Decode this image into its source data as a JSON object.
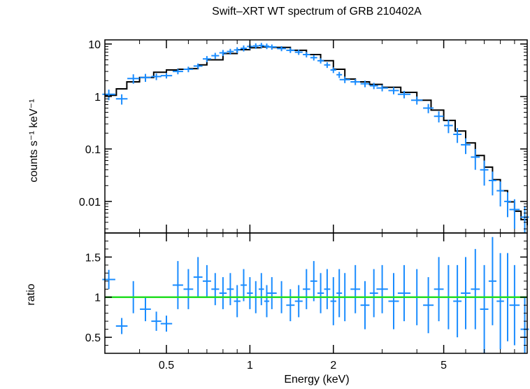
{
  "chart_data": [
    {
      "type": "scatter",
      "panel": "spectrum",
      "title": "Swift–XRT WT spectrum of GRB 210402A",
      "xlabel": "Energy (keV)",
      "ylabel": "counts s⁻¹ keV⁻¹",
      "xscale": "log",
      "yscale": "log",
      "xlim": [
        0.3,
        10
      ],
      "ylim": [
        0.0025,
        12
      ],
      "yticks": [
        "10",
        "1",
        "0.1",
        "0.01"
      ],
      "colors": {
        "data": "#1a8cff",
        "model": "#000000"
      },
      "model": {
        "x": [
          0.3,
          0.33,
          0.36,
          0.4,
          0.45,
          0.5,
          0.55,
          0.6,
          0.65,
          0.7,
          0.8,
          0.9,
          1.0,
          1.1,
          1.2,
          1.4,
          1.6,
          1.8,
          2.0,
          2.2,
          2.4,
          2.7,
          3.0,
          3.5,
          4.0,
          4.5,
          5.0,
          5.5,
          6.0,
          6.5,
          7.0,
          7.5,
          8.0,
          8.5,
          9.0,
          9.5,
          10.0
        ],
        "y": [
          1.05,
          1.4,
          1.9,
          2.3,
          2.9,
          3.2,
          3.3,
          3.4,
          4.0,
          5.0,
          6.6,
          7.8,
          8.5,
          8.8,
          8.6,
          7.6,
          6.3,
          4.8,
          3.3,
          2.15,
          1.9,
          1.7,
          1.5,
          1.2,
          0.85,
          0.55,
          0.35,
          0.22,
          0.13,
          0.075,
          0.045,
          0.026,
          0.016,
          0.0098,
          0.0065,
          0.0045,
          0.0035
        ]
      },
      "data": {
        "x": [
          0.31,
          0.345,
          0.38,
          0.42,
          0.46,
          0.5,
          0.55,
          0.6,
          0.65,
          0.7,
          0.75,
          0.8,
          0.85,
          0.9,
          0.95,
          1.0,
          1.05,
          1.1,
          1.15,
          1.2,
          1.3,
          1.4,
          1.5,
          1.6,
          1.7,
          1.8,
          1.9,
          2.0,
          2.1,
          2.2,
          2.4,
          2.6,
          2.8,
          3.0,
          3.3,
          3.6,
          4.0,
          4.4,
          4.8,
          5.2,
          5.6,
          6.0,
          6.5,
          7.0,
          7.5,
          8.0,
          8.5,
          9.0,
          9.8
        ],
        "y": [
          1.1,
          0.9,
          2.2,
          2.3,
          2.4,
          2.5,
          3.0,
          3.3,
          3.8,
          5.2,
          6.0,
          6.8,
          7.2,
          7.7,
          8.3,
          9.0,
          9.2,
          9.4,
          9.1,
          8.8,
          8.2,
          7.6,
          7.0,
          6.3,
          5.5,
          4.8,
          4.0,
          3.2,
          2.6,
          2.1,
          1.9,
          1.75,
          1.6,
          1.45,
          1.3,
          1.1,
          0.85,
          0.6,
          0.42,
          0.28,
          0.19,
          0.12,
          0.07,
          0.04,
          0.025,
          0.016,
          0.01,
          0.007,
          0.005
        ],
        "yerr": [
          0.25,
          0.2,
          0.45,
          0.4,
          0.35,
          0.3,
          0.35,
          0.4,
          0.45,
          0.7,
          0.8,
          0.9,
          0.9,
          1.0,
          1.1,
          1.1,
          1.1,
          1.1,
          1.1,
          1.0,
          0.9,
          0.85,
          0.8,
          0.75,
          0.65,
          0.55,
          0.5,
          0.4,
          0.35,
          0.3,
          0.25,
          0.25,
          0.22,
          0.2,
          0.2,
          0.18,
          0.15,
          0.12,
          0.1,
          0.08,
          0.06,
          0.04,
          0.03,
          0.02,
          0.012,
          0.008,
          0.005,
          0.004,
          0.003
        ]
      }
    },
    {
      "type": "scatter",
      "panel": "ratio",
      "xlabel": "Energy (keV)",
      "ylabel": "ratio",
      "xscale": "log",
      "xlim": [
        0.3,
        10
      ],
      "ylim": [
        0.3,
        1.8
      ],
      "yticks": [
        "1.5",
        "1",
        "0.5"
      ],
      "xticks": [
        "0.5",
        "1",
        "2",
        "5"
      ],
      "reference_line": 1,
      "colors": {
        "data": "#1a8cff",
        "reference": "#22dd22"
      },
      "data": {
        "x": [
          0.31,
          0.345,
          0.38,
          0.42,
          0.46,
          0.5,
          0.55,
          0.6,
          0.65,
          0.7,
          0.75,
          0.8,
          0.85,
          0.9,
          0.95,
          1.0,
          1.05,
          1.1,
          1.15,
          1.2,
          1.3,
          1.4,
          1.5,
          1.6,
          1.7,
          1.8,
          1.9,
          2.0,
          2.1,
          2.2,
          2.4,
          2.6,
          2.8,
          3.0,
          3.3,
          3.6,
          4.0,
          4.4,
          4.8,
          5.2,
          5.6,
          6.0,
          6.5,
          7.0,
          7.5,
          8.0,
          8.5,
          9.0,
          9.8
        ],
        "y": [
          1.22,
          0.64,
          1.0,
          0.85,
          0.7,
          0.67,
          1.15,
          1.1,
          1.25,
          1.2,
          1.1,
          1.05,
          1.1,
          0.95,
          1.15,
          1.05,
          1.0,
          1.1,
          0.95,
          1.05,
          1.0,
          0.9,
          0.95,
          1.1,
          1.2,
          1.05,
          1.1,
          0.95,
          1.05,
          1.0,
          1.1,
          0.9,
          1.05,
          1.1,
          0.95,
          1.05,
          1.0,
          0.9,
          1.1,
          1.0,
          0.95,
          1.05,
          1.1,
          0.85,
          1.2,
          0.95,
          1.0,
          0.9,
          0.6
        ],
        "yerr": [
          0.12,
          0.1,
          0.2,
          0.15,
          0.12,
          0.1,
          0.3,
          0.25,
          0.25,
          0.2,
          0.2,
          0.2,
          0.2,
          0.2,
          0.2,
          0.2,
          0.2,
          0.2,
          0.2,
          0.2,
          0.2,
          0.2,
          0.2,
          0.25,
          0.25,
          0.25,
          0.25,
          0.3,
          0.3,
          0.3,
          0.3,
          0.3,
          0.3,
          0.3,
          0.35,
          0.35,
          0.35,
          0.35,
          0.4,
          0.4,
          0.45,
          0.45,
          0.5,
          0.55,
          0.55,
          0.6,
          0.55,
          0.5,
          0.4
        ]
      }
    }
  ]
}
